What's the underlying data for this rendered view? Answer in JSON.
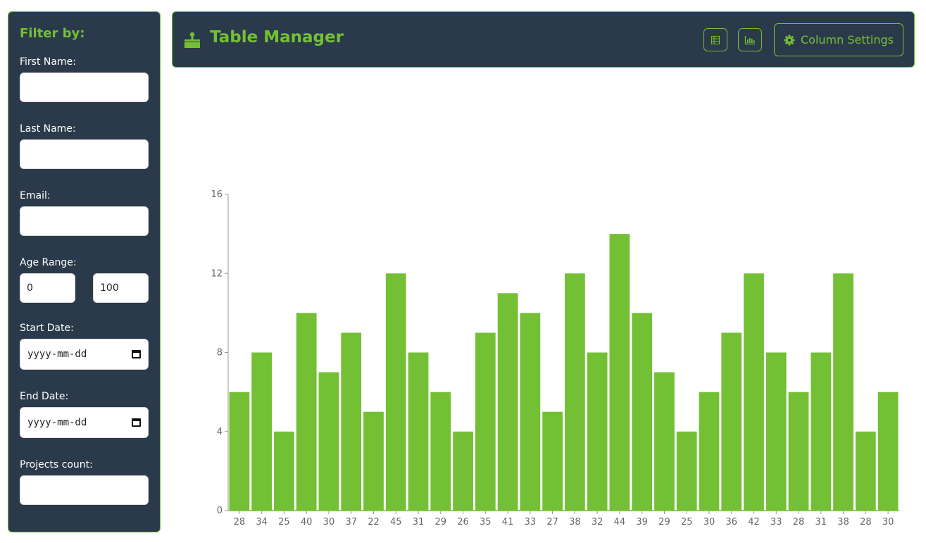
{
  "sidebar": {
    "title": "Filter by:",
    "first_name_label": "First Name:",
    "first_name_value": "",
    "last_name_label": "Last Name:",
    "last_name_value": "",
    "email_label": "Email:",
    "email_value": "",
    "age_range_label": "Age Range:",
    "age_min": "0",
    "age_max": "100",
    "start_date_label": "Start Date:",
    "start_date_placeholder": "yyyy-mm-dd",
    "end_date_label": "End Date:",
    "end_date_placeholder": "yyyy-mm-dd",
    "projects_label": "Projects count:",
    "projects_value": ""
  },
  "header": {
    "title": "Table Manager",
    "table_view_icon": "table-icon",
    "chart_view_icon": "bar-chart-icon",
    "column_settings_label": "Column Settings",
    "column_settings_icon": "gear-icon"
  },
  "colors": {
    "accent": "#74c035",
    "panel_bg": "#2b3a4a"
  },
  "chart_data": {
    "type": "bar",
    "categories": [
      "28",
      "34",
      "25",
      "40",
      "30",
      "37",
      "22",
      "45",
      "31",
      "29",
      "26",
      "35",
      "41",
      "33",
      "27",
      "38",
      "32",
      "44",
      "39",
      "29",
      "25",
      "30",
      "36",
      "42",
      "33",
      "28",
      "31",
      "38",
      "28",
      "30"
    ],
    "values": [
      6,
      8,
      4,
      10,
      7,
      9,
      5,
      12,
      8,
      6,
      4,
      9,
      11,
      10,
      5,
      12,
      8,
      14,
      10,
      7,
      4,
      6,
      9,
      12,
      8,
      6,
      8,
      12,
      4,
      6
    ],
    "yticks": [
      0,
      4,
      8,
      12,
      16
    ],
    "ylim": [
      0,
      16
    ],
    "grid": false,
    "color": "#74c035"
  }
}
